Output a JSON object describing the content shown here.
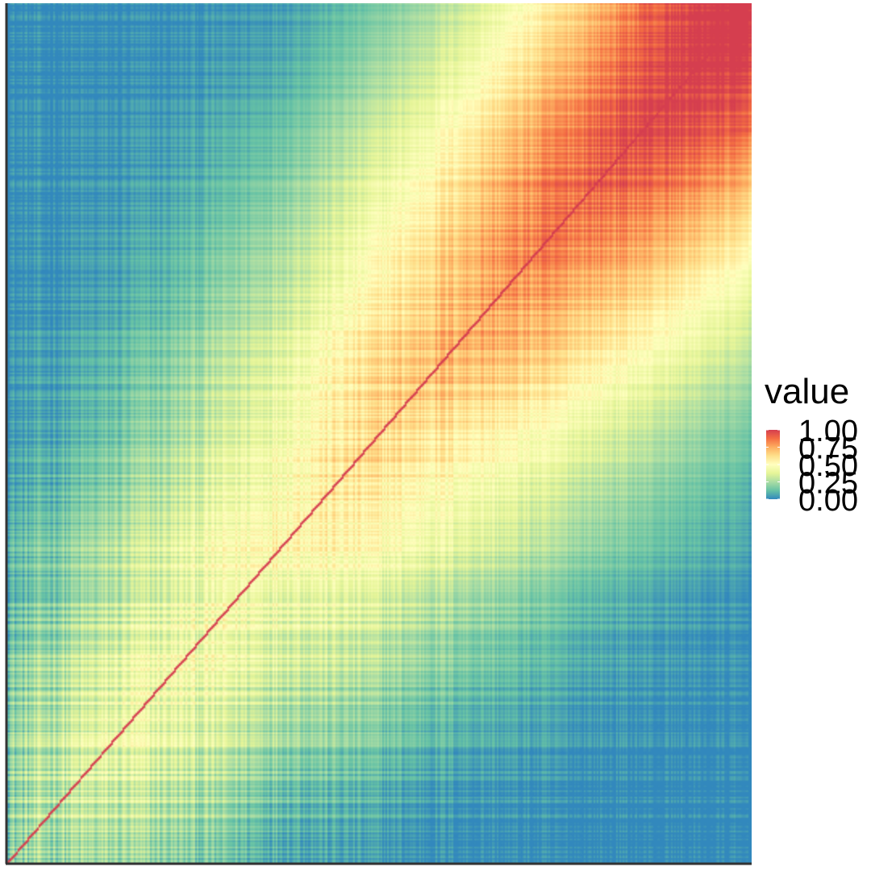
{
  "chart_data": {
    "type": "heatmap",
    "title": "",
    "xlabel": "",
    "ylabel": "",
    "color_scale": {
      "name": "Spectral (reversed)",
      "range": [
        0,
        1
      ],
      "stops": [
        {
          "value": 0.0,
          "color": "#3288bd"
        },
        {
          "value": 0.125,
          "color": "#66c2a5"
        },
        {
          "value": 0.25,
          "color": "#abdda4"
        },
        {
          "value": 0.375,
          "color": "#e6f598"
        },
        {
          "value": 0.5,
          "color": "#ffffbf"
        },
        {
          "value": 0.625,
          "color": "#fee08b"
        },
        {
          "value": 0.75,
          "color": "#fdae61"
        },
        {
          "value": 0.875,
          "color": "#f46d43"
        },
        {
          "value": 1.0,
          "color": "#d53e4f"
        }
      ]
    },
    "legend": {
      "title": "value",
      "placement": "right",
      "breaks": [
        {
          "value": 0.0,
          "label": "0.00"
        },
        {
          "value": 0.25,
          "label": "0.25"
        },
        {
          "value": 0.5,
          "label": "0.50"
        },
        {
          "value": 0.75,
          "label": "0.75"
        },
        {
          "value": 1.0,
          "label": "1.00"
        }
      ]
    },
    "grid": false,
    "axis_ticks": false,
    "pattern": {
      "diagonal_value": 1.0,
      "high_region": "top-right",
      "low_regions": [
        "top-left",
        "bottom-right"
      ]
    }
  }
}
